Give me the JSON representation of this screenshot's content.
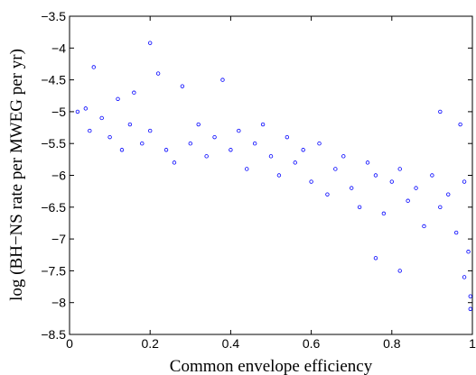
{
  "chart_data": {
    "type": "scatter",
    "title": "",
    "xlabel": "Common envelope efficiency",
    "ylabel": "log (BH−NS rate per MWEG per yr)",
    "xlim": [
      0,
      1
    ],
    "ylim": [
      -8.5,
      -3.5
    ],
    "xticks": [
      0,
      0.2,
      0.4,
      0.6,
      0.8,
      1
    ],
    "xtick_labels": [
      "0",
      "0.2",
      "0.4",
      "0.6",
      "0.8",
      "1"
    ],
    "yticks": [
      -8.5,
      -8,
      -7.5,
      -7,
      -6.5,
      -6,
      -5.5,
      -5,
      -4.5,
      -4,
      -3.5
    ],
    "ytick_labels": [
      "−8.5",
      "−8",
      "−7.5",
      "−7",
      "−6.5",
      "−6",
      "−5.5",
      "−5",
      "−4.5",
      "−4",
      "−3.5"
    ],
    "grid": false,
    "marker": "open-circle",
    "marker_color": "#0000ff",
    "series": [
      {
        "points": [
          [
            0.02,
            -5.0
          ],
          [
            0.04,
            -4.95
          ],
          [
            0.06,
            -4.3
          ],
          [
            0.05,
            -5.3
          ],
          [
            0.08,
            -5.1
          ],
          [
            0.1,
            -5.4
          ],
          [
            0.12,
            -4.8
          ],
          [
            0.13,
            -5.6
          ],
          [
            0.15,
            -5.2
          ],
          [
            0.16,
            -4.7
          ],
          [
            0.18,
            -5.5
          ],
          [
            0.2,
            -5.3
          ],
          [
            0.2,
            -3.92
          ],
          [
            0.22,
            -4.4
          ],
          [
            0.24,
            -5.6
          ],
          [
            0.26,
            -5.8
          ],
          [
            0.28,
            -4.6
          ],
          [
            0.3,
            -5.5
          ],
          [
            0.32,
            -5.2
          ],
          [
            0.34,
            -5.7
          ],
          [
            0.36,
            -5.4
          ],
          [
            0.38,
            -4.5
          ],
          [
            0.4,
            -5.6
          ],
          [
            0.42,
            -5.3
          ],
          [
            0.44,
            -5.9
          ],
          [
            0.46,
            -5.5
          ],
          [
            0.48,
            -5.2
          ],
          [
            0.5,
            -5.7
          ],
          [
            0.52,
            -6.0
          ],
          [
            0.54,
            -5.4
          ],
          [
            0.56,
            -5.8
          ],
          [
            0.58,
            -5.6
          ],
          [
            0.6,
            -6.1
          ],
          [
            0.62,
            -5.5
          ],
          [
            0.64,
            -6.3
          ],
          [
            0.66,
            -5.9
          ],
          [
            0.68,
            -5.7
          ],
          [
            0.7,
            -6.2
          ],
          [
            0.72,
            -6.5
          ],
          [
            0.74,
            -5.8
          ],
          [
            0.76,
            -6.0
          ],
          [
            0.78,
            -6.6
          ],
          [
            0.8,
            -6.1
          ],
          [
            0.82,
            -5.9
          ],
          [
            0.84,
            -6.4
          ],
          [
            0.86,
            -6.2
          ],
          [
            0.88,
            -6.8
          ],
          [
            0.9,
            -6.0
          ],
          [
            0.92,
            -6.5
          ],
          [
            0.94,
            -6.3
          ],
          [
            0.96,
            -6.9
          ],
          [
            0.98,
            -6.1
          ],
          [
            0.99,
            -7.2
          ],
          [
            0.995,
            -8.1
          ],
          [
            0.995,
            -7.9
          ],
          [
            0.98,
            -7.6
          ],
          [
            0.97,
            -5.2
          ],
          [
            0.92,
            -5.0
          ],
          [
            0.76,
            -7.3
          ],
          [
            0.82,
            -7.5
          ]
        ]
      }
    ]
  }
}
